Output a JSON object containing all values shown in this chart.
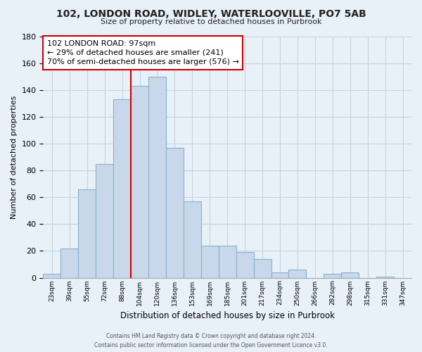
{
  "title1": "102, LONDON ROAD, WIDLEY, WATERLOOVILLE, PO7 5AB",
  "title2": "Size of property relative to detached houses in Purbrook",
  "xlabel": "Distribution of detached houses by size in Purbrook",
  "ylabel": "Number of detached properties",
  "bin_labels": [
    "23sqm",
    "39sqm",
    "55sqm",
    "72sqm",
    "88sqm",
    "104sqm",
    "120sqm",
    "136sqm",
    "153sqm",
    "169sqm",
    "185sqm",
    "201sqm",
    "217sqm",
    "234sqm",
    "250sqm",
    "266sqm",
    "282sqm",
    "298sqm",
    "315sqm",
    "331sqm",
    "347sqm"
  ],
  "bar_heights": [
    3,
    22,
    66,
    85,
    133,
    143,
    150,
    97,
    57,
    24,
    24,
    19,
    14,
    4,
    6,
    0,
    3,
    4,
    0,
    1,
    0
  ],
  "bar_color": "#c8d8ea",
  "bar_edge_color": "#8ab0cc",
  "vline_color": "#cc0000",
  "annotation_line1": "102 LONDON ROAD: 97sqm",
  "annotation_line2": "← 29% of detached houses are smaller (241)",
  "annotation_line3": "70% of semi-detached houses are larger (576) →",
  "annotation_box_color": "#ffffff",
  "annotation_box_edge": "#cc0000",
  "ylim": [
    0,
    180
  ],
  "footer1": "Contains HM Land Registry data © Crown copyright and database right 2024.",
  "footer2": "Contains public sector information licensed under the Open Government Licence v3.0.",
  "background_color": "#e8f0f8",
  "plot_background": "#e8f0f8",
  "grid_color": "#c8d4e0"
}
